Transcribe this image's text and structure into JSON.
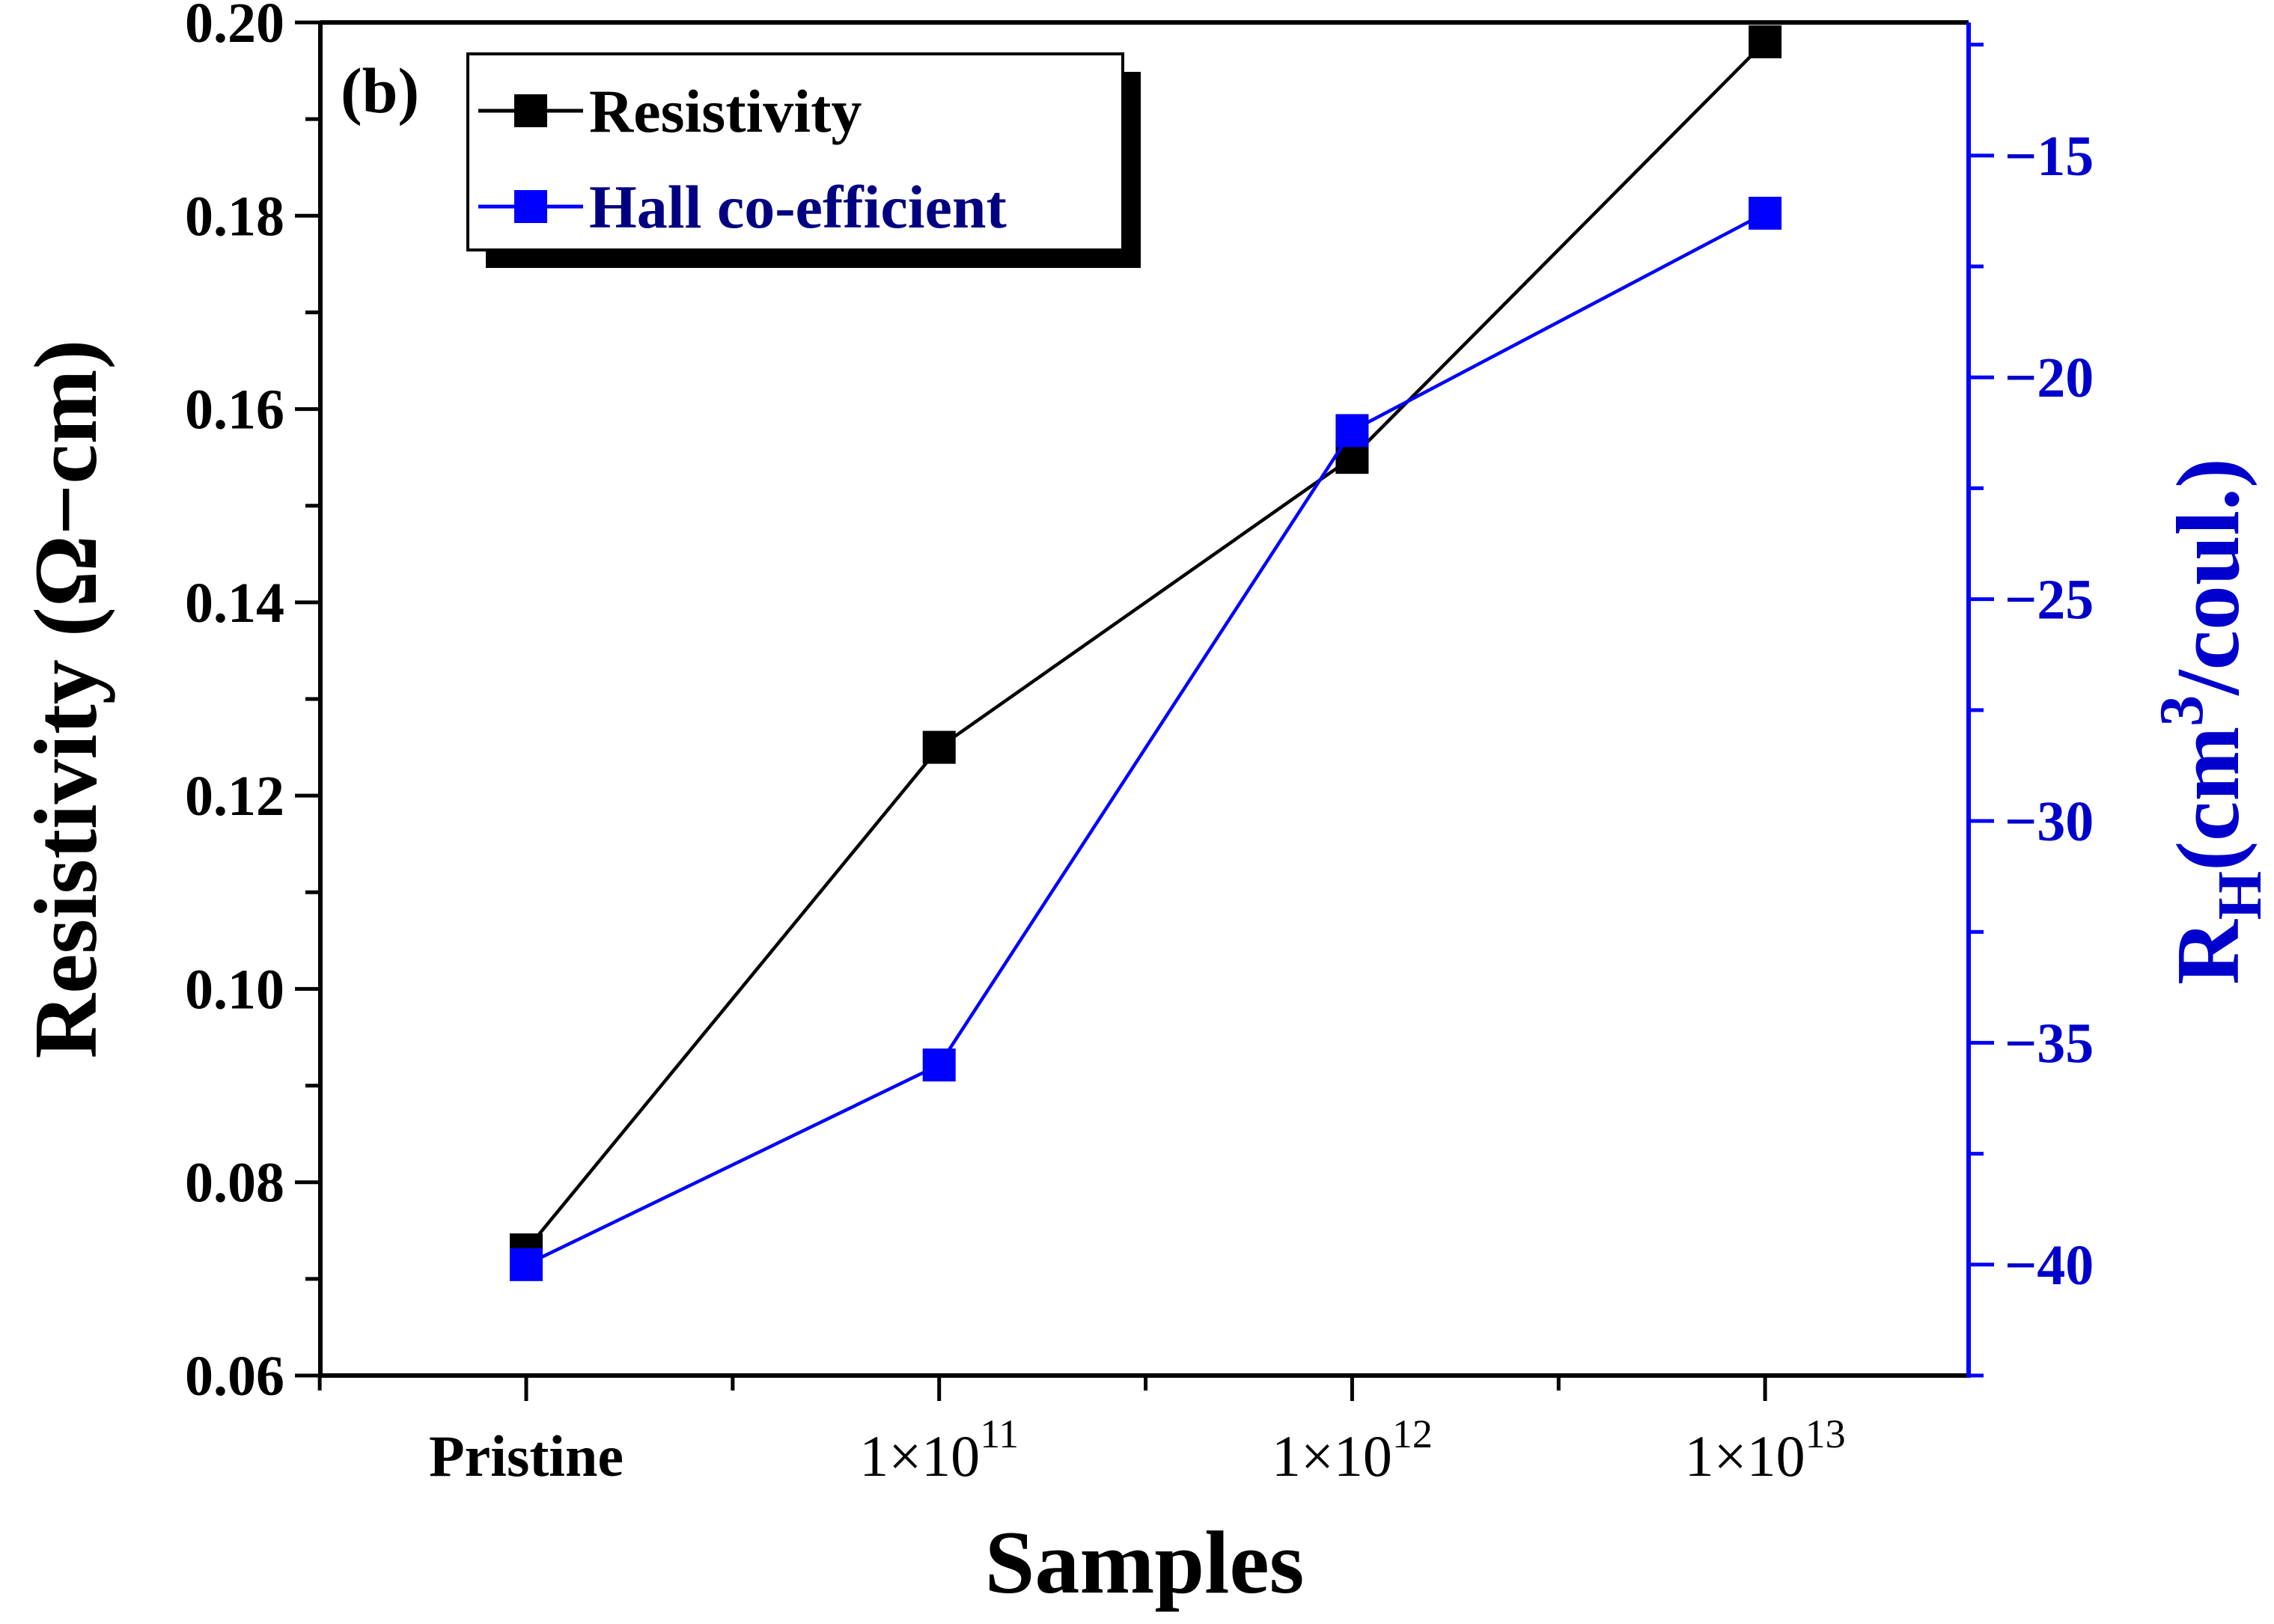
{
  "chart_data": {
    "type": "line",
    "panel_label": "(b)",
    "xlabel": "Samples",
    "categories": [
      {
        "base": "Pristine",
        "exp": ""
      },
      {
        "base": "1×10",
        "exp": "11"
      },
      {
        "base": "1×10",
        "exp": "12"
      },
      {
        "base": "1×10",
        "exp": "13"
      }
    ],
    "y_left": {
      "label": "Resistivity (Ω−cm)",
      "lim": [
        0.06,
        0.2
      ],
      "major_ticks": [
        "0.06",
        "0.08",
        "0.10",
        "0.12",
        "0.14",
        "0.16",
        "0.18",
        "0.20"
      ],
      "tick_values": [
        0.06,
        0.08,
        0.1,
        0.12,
        0.14,
        0.16,
        0.18,
        0.2
      ],
      "color": "#000000"
    },
    "y_right": {
      "label_main": "R",
      "label_sub": "H",
      "label_mid": "(cm",
      "label_sup": "3",
      "label_end": "/coul.)",
      "lim": [
        -42.5,
        -12.0
      ],
      "major_ticks": [
        "-15",
        "-20",
        "-25",
        "-30",
        "-35",
        "-40"
      ],
      "tick_values": [
        -15,
        -20,
        -25,
        -30,
        -35,
        -40
      ],
      "color": "#0000ff",
      "text_color": "#0000cc"
    },
    "series": [
      {
        "name": "Resistivity",
        "axis": "left",
        "color": "#000000",
        "values": [
          0.073,
          0.125,
          0.155,
          0.198
        ]
      },
      {
        "name": "Hall co-efficient",
        "axis": "right",
        "color": "#0000ff",
        "values": [
          -40.0,
          -35.5,
          -21.2,
          -16.3
        ]
      }
    ]
  }
}
